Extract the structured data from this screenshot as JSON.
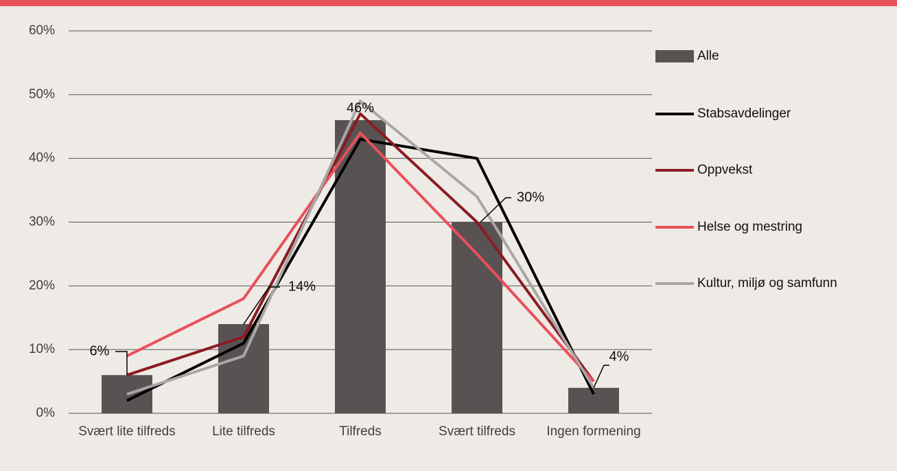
{
  "chart_data": {
    "type": "combo",
    "categories": [
      "Svært lite tilfreds",
      "Lite tilfreds",
      "Tilfreds",
      "Svært tilfreds",
      "Ingen formening"
    ],
    "series": [
      {
        "name": "Alle",
        "type": "bar",
        "color": "#595253",
        "values": [
          6,
          14,
          46,
          30,
          4
        ],
        "value_labels": [
          "6%",
          "14%",
          "46%",
          "30%",
          "4%"
        ]
      },
      {
        "name": "Stabsavdelinger",
        "type": "line",
        "color": "#000000",
        "values": [
          2,
          11,
          43,
          40,
          3
        ]
      },
      {
        "name": "Oppvekst",
        "type": "line",
        "color": "#8b1a22",
        "values": [
          6,
          12,
          47,
          30,
          5
        ]
      },
      {
        "name": "Helse og mestring",
        "type": "line",
        "color": "#e8505b",
        "values": [
          9,
          18,
          44,
          25,
          5
        ]
      },
      {
        "name": "Kultur, miljø og samfunn",
        "type": "line",
        "color": "#a9a6a6",
        "values": [
          3,
          9,
          49,
          34,
          4
        ]
      }
    ],
    "ylim": [
      0,
      60
    ],
    "yticks": [
      {
        "value": 0,
        "label": "0%"
      },
      {
        "value": 10,
        "label": "10%"
      },
      {
        "value": 20,
        "label": "20%"
      },
      {
        "value": 30,
        "label": "30%"
      },
      {
        "value": 40,
        "label": "40%"
      },
      {
        "value": 50,
        "label": "50%"
      },
      {
        "value": 60,
        "label": "60%"
      }
    ],
    "grid": true,
    "legend": "right"
  }
}
